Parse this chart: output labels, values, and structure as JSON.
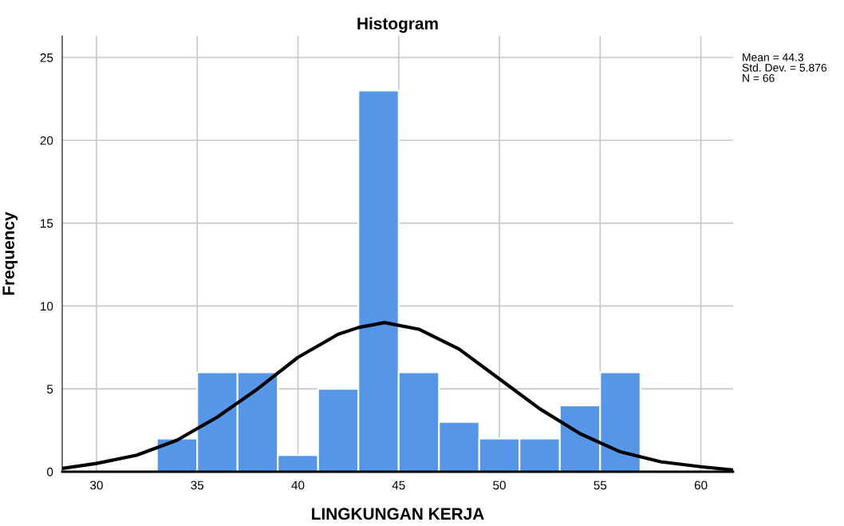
{
  "chart_data": {
    "type": "histogram",
    "title": "Histogram",
    "xlabel": "LINGKUNGAN KERJA",
    "ylabel": "Frequency",
    "bins": [
      33,
      35,
      37,
      39,
      41,
      43,
      45,
      47,
      49,
      51,
      53,
      55,
      57
    ],
    "values": [
      2,
      6,
      6,
      1,
      5,
      23,
      6,
      3,
      2,
      2,
      4,
      6
    ],
    "color": "#5596e6",
    "series": [
      {
        "type": "line",
        "color": "#000000",
        "x": [
          28.3,
          30,
          32,
          34,
          36,
          38,
          40,
          42,
          43,
          44.3,
          46,
          48,
          50,
          52,
          54,
          56,
          58,
          60,
          61.6
        ],
        "values": [
          0.2,
          0.5,
          1.0,
          1.9,
          3.3,
          5.0,
          6.9,
          8.3,
          8.7,
          9.0,
          8.6,
          7.4,
          5.6,
          3.8,
          2.3,
          1.2,
          0.6,
          0.3,
          0.1
        ]
      }
    ],
    "xlim": [
      28.3,
      61.6
    ],
    "ylim": [
      0,
      26.3
    ],
    "xticks": [
      30,
      35,
      40,
      45,
      50,
      55,
      60
    ],
    "yticks": [
      0,
      5,
      10,
      15,
      20,
      25
    ],
    "grid": true,
    "annotations": [
      "Mean = 44.3",
      "Std. Dev. = 5.876",
      "N = 66"
    ]
  }
}
